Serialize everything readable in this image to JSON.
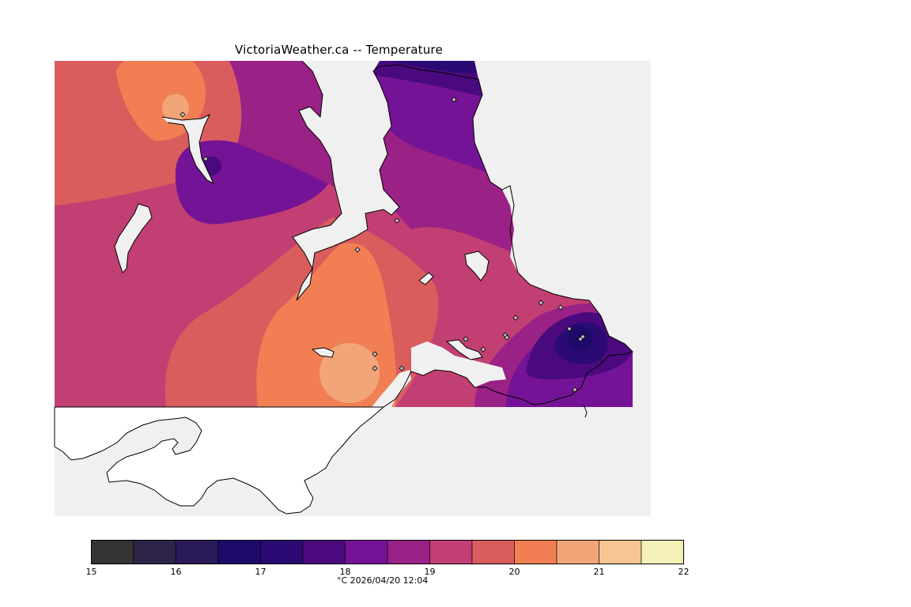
{
  "title": "VictoriaWeather.ca -- Temperature",
  "legend": {
    "min": 15,
    "max": 22,
    "step": 0.5,
    "tick_labels": [
      "15",
      "16",
      "17",
      "18",
      "19",
      "20",
      "21",
      "22"
    ],
    "colors": [
      "#333333",
      "#2e2348",
      "#2b1a5a",
      "#1f0a6a",
      "#2c0a73",
      "#4a0a7e",
      "#751396",
      "#9a2185",
      "#c23f73",
      "#da5d5e",
      "#f17f53",
      "#f2a579",
      "#f5c594",
      "#f5efb8"
    ]
  },
  "caption": "°C  2026/04/20 12:04",
  "colors": {
    "water": "#f0f0f0",
    "land_unmapped": "#ffffff",
    "coast": "#000000"
  },
  "stations": [
    {
      "id": "s1"
    },
    {
      "id": "s2"
    },
    {
      "id": "s3"
    },
    {
      "id": "s4"
    },
    {
      "id": "s5"
    },
    {
      "id": "s6"
    },
    {
      "id": "s7"
    },
    {
      "id": "s8"
    },
    {
      "id": "s9"
    },
    {
      "id": "s10"
    },
    {
      "id": "s11"
    },
    {
      "id": "s12"
    },
    {
      "id": "s13"
    },
    {
      "id": "s14"
    },
    {
      "id": "s15"
    },
    {
      "id": "s16"
    },
    {
      "id": "s17"
    },
    {
      "id": "s18"
    }
  ]
}
